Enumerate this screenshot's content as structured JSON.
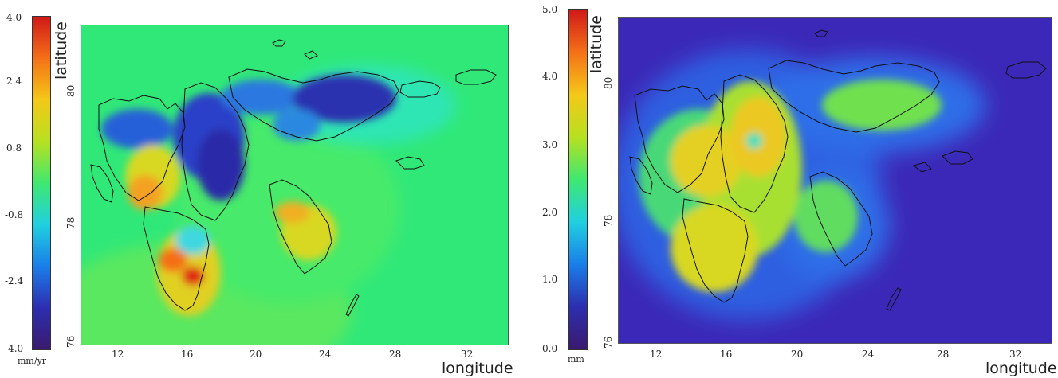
{
  "colors": {
    "ocean_left": "#30e878",
    "ocean_right": "#4540d8",
    "coast": "#111111"
  },
  "maps": [
    {
      "colorbar": {
        "ticks": [
          "4.0",
          "2.4",
          "0.8",
          "-0.8",
          "-2.4",
          "-4.0"
        ],
        "unit": "mm/yr",
        "stops": [
          "#3a1a6e",
          "#2d2eb0",
          "#1a7ee8",
          "#20d0e0",
          "#3fe870",
          "#b8e020",
          "#f4c818",
          "#f47018",
          "#d01818"
        ]
      },
      "axes": {
        "ylabel": "latitude",
        "xlabel": "longitude",
        "lat_ticks": [
          "80",
          "78",
          "76"
        ],
        "lon_ticks": [
          "12",
          "16",
          "20",
          "24",
          "28",
          "32"
        ]
      }
    },
    {
      "colorbar": {
        "ticks": [
          "5.0",
          "4.0",
          "3.0",
          "2.0",
          "1.0",
          "0.0"
        ],
        "unit": "mm",
        "stops": [
          "#3a1a6e",
          "#2d2eb0",
          "#1a7ee8",
          "#20d0e0",
          "#3fe870",
          "#b8e020",
          "#f4c818",
          "#f47018",
          "#d01818"
        ]
      },
      "axes": {
        "ylabel": "latitude",
        "xlabel": "longitude",
        "lat_ticks": [
          "80",
          "78",
          "76"
        ],
        "lon_ticks": [
          "12",
          "16",
          "20",
          "24",
          "28",
          "32"
        ]
      }
    }
  ]
}
